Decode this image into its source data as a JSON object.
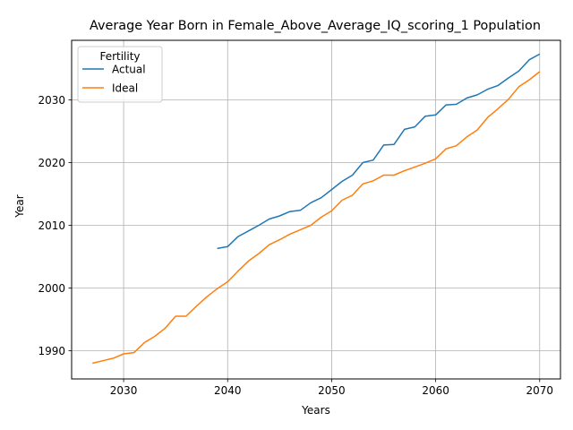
{
  "chart_data": {
    "type": "line",
    "title": "Average Year Born in Female_Above_Average_IQ_scoring_1 Population",
    "xlabel": "Years",
    "ylabel": "Year",
    "xlim": [
      2025,
      2072
    ],
    "ylim": [
      1985.5,
      2039.5
    ],
    "xticks": [
      2030,
      2040,
      2050,
      2060,
      2070
    ],
    "yticks": [
      1990,
      2000,
      2010,
      2020,
      2030
    ],
    "grid": true,
    "legend": {
      "title": "Fertility",
      "placement": "upper-left"
    },
    "series": [
      {
        "name": "Actual",
        "color": "#1f77b4",
        "x": [
          2039,
          2040,
          2041,
          2042,
          2043,
          2044,
          2045,
          2046,
          2047,
          2048,
          2049,
          2050,
          2051,
          2052,
          2053,
          2054,
          2055,
          2056,
          2057,
          2058,
          2059,
          2060,
          2061,
          2062,
          2063,
          2064,
          2065,
          2066,
          2067,
          2068,
          2069,
          2070
        ],
        "y": [
          2006.3,
          2006.6,
          2008.2,
          2009.1,
          2010.0,
          2011.0,
          2011.5,
          2012.2,
          2012.4,
          2013.6,
          2014.4,
          2015.7,
          2017.0,
          2018.0,
          2020.0,
          2020.4,
          2022.8,
          2022.9,
          2025.3,
          2025.7,
          2027.4,
          2027.6,
          2029.2,
          2029.3,
          2030.3,
          2030.8,
          2031.7,
          2032.3,
          2033.5,
          2034.6,
          2036.4,
          2037.3
        ]
      },
      {
        "name": "Ideal",
        "color": "#ff7f0e",
        "x": [
          2027,
          2028,
          2029,
          2030,
          2031,
          2032,
          2033,
          2034,
          2035,
          2036,
          2037,
          2038,
          2039,
          2040,
          2041,
          2042,
          2043,
          2044,
          2045,
          2046,
          2047,
          2048,
          2049,
          2050,
          2051,
          2052,
          2053,
          2054,
          2055,
          2056,
          2057,
          2058,
          2059,
          2060,
          2061,
          2062,
          2063,
          2064,
          2065,
          2066,
          2067,
          2068,
          2069,
          2070
        ],
        "y": [
          1988.0,
          1988.4,
          1988.8,
          1989.5,
          1989.7,
          1991.3,
          1992.3,
          1993.6,
          1995.5,
          1995.5,
          1997.1,
          1998.6,
          1999.9,
          2001.0,
          2002.7,
          2004.3,
          2005.5,
          2006.9,
          2007.7,
          2008.6,
          2009.3,
          2010.0,
          2011.3,
          2012.3,
          2014.0,
          2014.8,
          2016.6,
          2017.1,
          2018.0,
          2018.0,
          2018.7,
          2019.3,
          2019.9,
          2020.6,
          2022.2,
          2022.7,
          2024.1,
          2025.2,
          2027.2,
          2028.6,
          2030.1,
          2032.1,
          2033.2,
          2034.5
        ]
      }
    ]
  }
}
